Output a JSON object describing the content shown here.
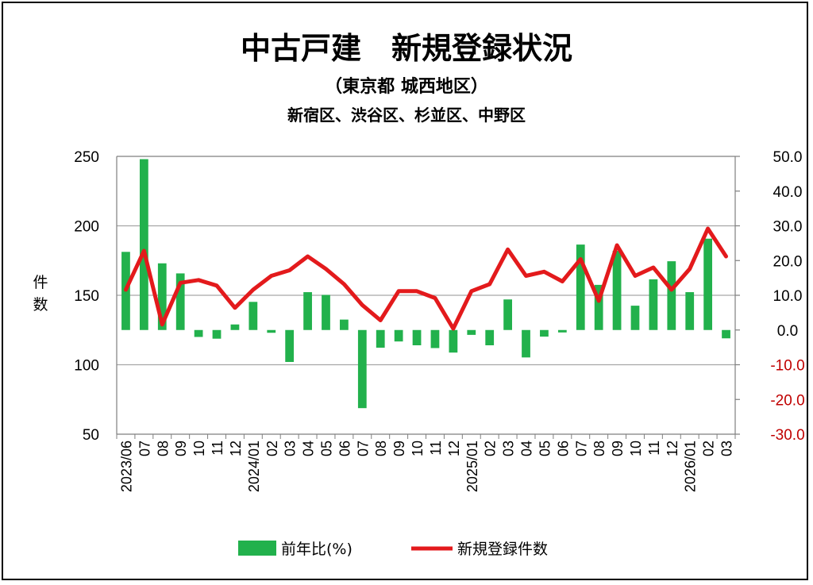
{
  "chart_data": {
    "type": "bar+line",
    "title": "中古戸建　新規登録状況",
    "subtitle": "（東京都 城西地区）",
    "subtitle2": "新宿区、渋谷区、杉並区、中野区",
    "ylabel_left": "件数",
    "ylim_left": [
      50,
      250
    ],
    "yticks_left": [
      "250",
      "200",
      "150",
      "100",
      "50"
    ],
    "ylim_right": [
      -30,
      50
    ],
    "yticks_right": [
      "50.0",
      "40.0",
      "30.0",
      "20.0",
      "10.0",
      "0.0",
      "-10.0",
      "-20.0",
      "-30.0"
    ],
    "grid": true,
    "categories": [
      "2023/06",
      "07",
      "08",
      "09",
      "10",
      "11",
      "12",
      "2024/01",
      "02",
      "03",
      "04",
      "05",
      "06",
      "07",
      "08",
      "09",
      "10",
      "11",
      "12",
      "2025/01",
      "02",
      "03",
      "04",
      "05",
      "06",
      "07",
      "08",
      "09",
      "10",
      "11",
      "12",
      "2026/01",
      "02",
      "03"
    ],
    "series": [
      {
        "name": "前年比(%)",
        "type": "bar",
        "axis": "right",
        "color": "#22b14c",
        "values": [
          22.5,
          49.2,
          19.2,
          16.3,
          -2.0,
          -2.5,
          1.6,
          8.1,
          -0.8,
          -9.2,
          10.9,
          10.1,
          3.0,
          -22.5,
          -5.1,
          -3.3,
          -4.4,
          -5.2,
          -6.5,
          -1.4,
          -4.4,
          8.8,
          -7.9,
          -1.9,
          -0.7,
          24.6,
          13.0,
          22.8,
          7.0,
          14.6,
          19.8,
          10.9,
          26.3,
          -2.4
        ]
      },
      {
        "name": "新規登録件数",
        "type": "line",
        "axis": "left",
        "color": "#e31a1c",
        "values": [
          154,
          182,
          129,
          159,
          161,
          157,
          141,
          154,
          164,
          168,
          178,
          169,
          158,
          143,
          132,
          153,
          153,
          148,
          126,
          153,
          158,
          183,
          164,
          167,
          160,
          176,
          146,
          186,
          164,
          170,
          154,
          169,
          198,
          178
        ]
      }
    ],
    "legend_position": "bottom",
    "accent_colors": {
      "bar": "#22b14c",
      "line": "#e31a1c",
      "right_axis_negative": "#c00000"
    }
  }
}
